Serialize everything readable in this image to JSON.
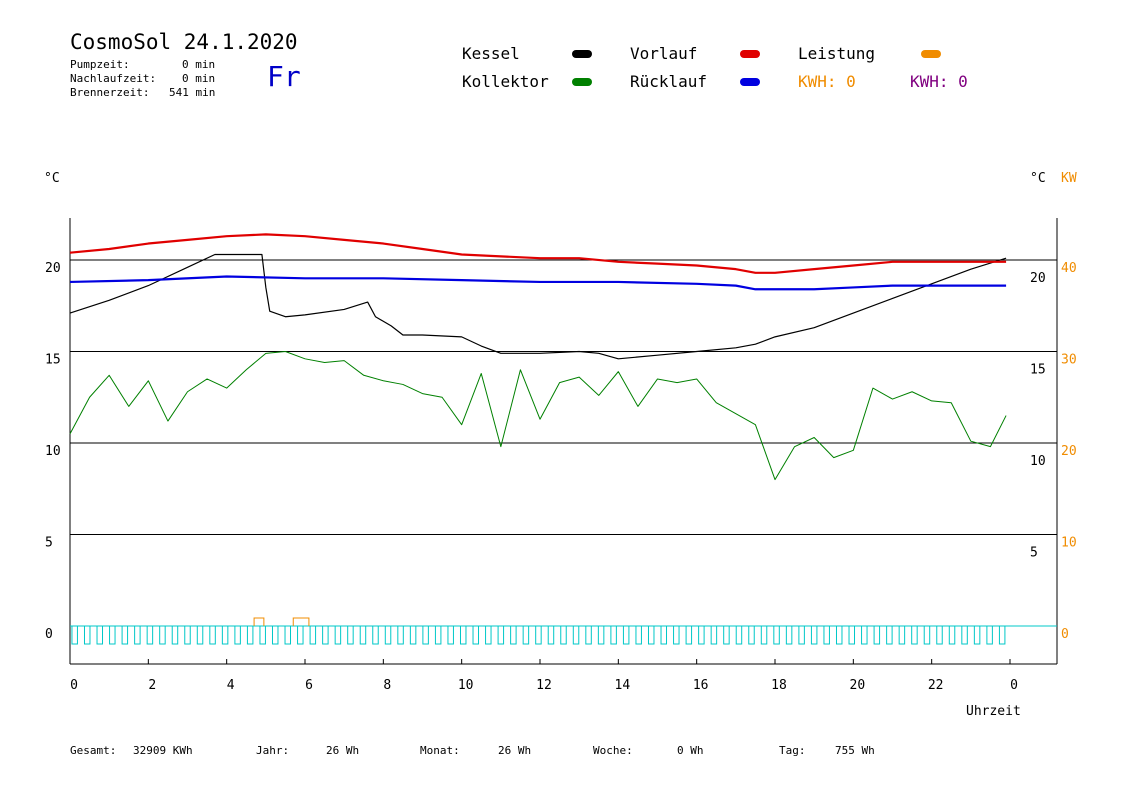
{
  "header": {
    "title": "CosmoSol 24.1.2020",
    "day": "Fr",
    "stats": [
      {
        "label": "Pumpzeit:",
        "value": "0 min"
      },
      {
        "label": "Nachlaufzeit:",
        "value": "0 min"
      },
      {
        "label": "Brennerzeit:",
        "value": "541 min"
      }
    ]
  },
  "legend": {
    "kessel": "Kessel",
    "vorlauf": "Vorlauf",
    "leistung": "Leistung",
    "kollektor": "Kollektor",
    "ruecklauf": "Rücklauf",
    "kwh1": "KWH: 0",
    "kwh2": "KWH: 0"
  },
  "colors": {
    "kessel": "#000000",
    "vorlauf": "#e00000",
    "leistung": "#f08c00",
    "kollektor": "#008000",
    "ruecklauf": "#0000e0",
    "pumpe": "#00c8c8",
    "kwh2": "#800080"
  },
  "footer": [
    {
      "label": "Gesamt:",
      "value": "32909 KWh"
    },
    {
      "label": "Jahr:",
      "value": "26 Wh"
    },
    {
      "label": "Monat:",
      "value": "26 Wh"
    },
    {
      "label": "Woche:",
      "value": "0 Wh"
    },
    {
      "label": "Tag:",
      "value": "755 Wh"
    }
  ],
  "chart_data": {
    "type": "line",
    "xlabel": "Uhrzeit",
    "ylabel_left": "°C",
    "ylabel_right": [
      "°C",
      "KW"
    ],
    "xlim": [
      0,
      24
    ],
    "ylim": [
      -1.5,
      22.5
    ],
    "x_ticks": [
      "0",
      "2",
      "4",
      "6",
      "8",
      "10",
      "12",
      "14",
      "16",
      "18",
      "20",
      "22",
      "0"
    ],
    "y_ticks_left": [
      "0",
      "5",
      "10",
      "15",
      "20"
    ],
    "y_ticks_right_c": [
      "5",
      "10",
      "15",
      "20"
    ],
    "y_ticks_right_kw": [
      "0",
      "10",
      "20",
      "30",
      "40"
    ],
    "grid": "horizontal",
    "series": [
      {
        "name": "Kessel",
        "x": [
          0,
          1,
          2,
          3,
          3.7,
          4.9,
          5.0,
          5.1,
          5.5,
          6,
          7,
          7.6,
          7.8,
          8.2,
          8.5,
          9,
          10,
          10.5,
          11,
          12,
          13,
          13.5,
          14,
          15,
          16,
          17,
          17.5,
          18,
          19,
          20,
          21,
          22,
          23,
          23.9
        ],
        "y": [
          17.1,
          17.8,
          18.6,
          19.6,
          20.3,
          20.3,
          18.5,
          17.2,
          16.9,
          17.0,
          17.3,
          17.7,
          16.9,
          16.4,
          15.9,
          15.9,
          15.8,
          15.3,
          14.9,
          14.9,
          15.0,
          14.9,
          14.6,
          14.8,
          15.0,
          15.2,
          15.4,
          15.8,
          16.3,
          17.1,
          17.9,
          18.7,
          19.5,
          20.1
        ]
      },
      {
        "name": "Vorlauf",
        "x": [
          0,
          1,
          2,
          3,
          4,
          5,
          6,
          7,
          8,
          9,
          10,
          11,
          12,
          13,
          14,
          15,
          16,
          17,
          17.5,
          18,
          19,
          20,
          21,
          22,
          23,
          23.9
        ],
        "y": [
          20.4,
          20.6,
          20.9,
          21.1,
          21.3,
          21.4,
          21.3,
          21.1,
          20.9,
          20.6,
          20.3,
          20.2,
          20.1,
          20.1,
          19.9,
          19.8,
          19.7,
          19.5,
          19.3,
          19.3,
          19.5,
          19.7,
          19.9,
          19.9,
          19.9,
          19.9
        ]
      },
      {
        "name": "Rücklauf",
        "x": [
          0,
          2,
          4,
          6,
          8,
          10,
          12,
          14,
          16,
          17,
          17.5,
          18,
          19,
          20,
          21,
          22,
          23,
          23.9
        ],
        "y": [
          18.8,
          18.9,
          19.1,
          19.0,
          19.0,
          18.9,
          18.8,
          18.8,
          18.7,
          18.6,
          18.4,
          18.4,
          18.4,
          18.5,
          18.6,
          18.6,
          18.6,
          18.6
        ]
      },
      {
        "name": "Kollektor",
        "x": [
          0,
          0.5,
          1,
          1.5,
          2,
          2.5,
          3,
          3.5,
          4,
          4.5,
          5,
          5.5,
          6,
          6.5,
          7,
          7.5,
          8,
          8.5,
          9,
          9.5,
          10,
          10.5,
          11,
          11.5,
          12,
          12.5,
          13,
          13.5,
          14,
          14.5,
          15,
          15.5,
          16,
          16.5,
          17,
          17.5,
          18,
          18.5,
          19,
          19.5,
          20,
          20.5,
          21,
          21.5,
          22,
          22.5,
          23,
          23.5,
          23.9
        ],
        "y": [
          10.5,
          12.5,
          13.7,
          12.0,
          13.4,
          11.2,
          12.8,
          13.5,
          13.0,
          14.0,
          14.9,
          15.0,
          14.6,
          14.4,
          14.5,
          13.7,
          13.4,
          13.2,
          12.7,
          12.5,
          11.0,
          13.8,
          9.8,
          14.0,
          11.3,
          13.3,
          13.6,
          12.6,
          13.9,
          12.0,
          13.5,
          13.3,
          13.5,
          12.2,
          11.6,
          11.0,
          8.0,
          9.8,
          10.3,
          9.2,
          9.6,
          13.0,
          12.4,
          12.8,
          12.3,
          12.2,
          10.1,
          9.8,
          11.5
        ]
      }
    ]
  }
}
